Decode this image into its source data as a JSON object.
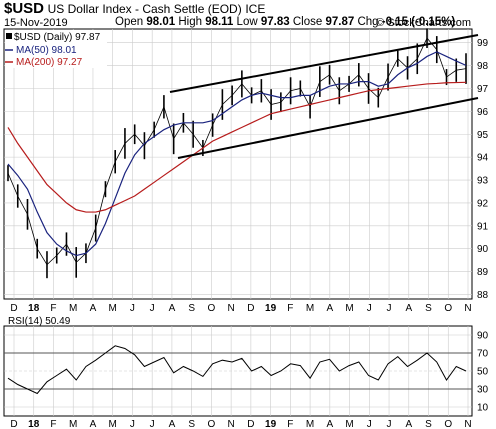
{
  "header": {
    "symbol": "$USD",
    "name": "US Dollar Index - Cash Settle (EOD)",
    "exchange": "ICE",
    "date": "15-Nov-2019",
    "open_label": "Open",
    "open": "98.01",
    "high_label": "High",
    "high": "98.11",
    "low_label": "Low",
    "low": "97.83",
    "close_label": "Close",
    "close": "97.87",
    "chg_label": "Chg",
    "chg": "-0.15 (-0.15%)",
    "watermark": "© StockCharts.com"
  },
  "legend": {
    "main": "$USD (Daily) 97.87",
    "ma50": "MA(50) 98.01",
    "ma200": "MA(200) 97.27",
    "rsi": "RSI(14) 50.49"
  },
  "colors": {
    "price": "#000000",
    "ma50": "#1a237e",
    "ma200": "#b71c1c",
    "rsi": "#000000",
    "grid": "#cccccc"
  },
  "chart_data": [
    {
      "type": "line",
      "title": "$USD (Daily)",
      "x_ticks": [
        "D",
        "18",
        "F",
        "M",
        "A",
        "M",
        "J",
        "J",
        "A",
        "S",
        "O",
        "N",
        "D",
        "19",
        "F",
        "M",
        "A",
        "M",
        "J",
        "J",
        "A",
        "S",
        "O",
        "N"
      ],
      "y_ticks": [
        88,
        89,
        90,
        91,
        92,
        93,
        94,
        95,
        96,
        97,
        98,
        99
      ],
      "ylim": [
        87.8,
        99.6
      ],
      "grid": true,
      "series": [
        {
          "name": "$USD (Daily)",
          "style": "bar-ohlc",
          "values": [
            93.3,
            92.3,
            91.5,
            90.0,
            89.3,
            89.7,
            90.2,
            89.4,
            89.8,
            90.9,
            92.6,
            93.8,
            94.6,
            95.0,
            94.5,
            95.2,
            96.2,
            94.8,
            95.5,
            95.0,
            94.4,
            95.4,
            96.3,
            96.7,
            97.2,
            96.7,
            96.9,
            96.3,
            96.4,
            96.9,
            97.0,
            96.2,
            97.3,
            97.6,
            96.9,
            97.2,
            97.6,
            97.0,
            96.6,
            97.5,
            98.3,
            97.9,
            98.3,
            99.2,
            98.7,
            97.5,
            97.8,
            97.87
          ]
        },
        {
          "name": "MA(50)",
          "values": [
            93.7,
            93.2,
            92.6,
            91.6,
            90.7,
            90.2,
            89.9,
            89.7,
            89.8,
            90.2,
            91.1,
            92.2,
            93.3,
            94.1,
            94.6,
            94.9,
            95.2,
            95.4,
            95.5,
            95.5,
            95.5,
            95.6,
            95.9,
            96.2,
            96.5,
            96.7,
            96.8,
            96.7,
            96.6,
            96.6,
            96.7,
            96.7,
            96.9,
            97.1,
            97.2,
            97.2,
            97.3,
            97.3,
            97.1,
            97.2,
            97.6,
            97.9,
            98.1,
            98.4,
            98.6,
            98.4,
            98.2,
            98.01
          ]
        },
        {
          "name": "MA(200)",
          "values": [
            95.3,
            94.6,
            94.0,
            93.4,
            92.8,
            92.4,
            92.0,
            91.7,
            91.6,
            91.6,
            91.7,
            91.9,
            92.1,
            92.3,
            92.6,
            92.9,
            93.2,
            93.5,
            93.8,
            94.1,
            94.4,
            94.7,
            94.9,
            95.1,
            95.3,
            95.5,
            95.7,
            95.9,
            96.0,
            96.1,
            96.2,
            96.3,
            96.4,
            96.5,
            96.6,
            96.7,
            96.8,
            96.9,
            96.95,
            97.0,
            97.05,
            97.1,
            97.15,
            97.2,
            97.22,
            97.25,
            97.26,
            97.27
          ]
        }
      ]
    },
    {
      "type": "line",
      "title": "RSI(14)",
      "x_ticks": [
        "D",
        "18",
        "F",
        "M",
        "A",
        "M",
        "J",
        "J",
        "A",
        "S",
        "O",
        "N",
        "D",
        "19",
        "F",
        "M",
        "A",
        "M",
        "J",
        "J",
        "A",
        "S",
        "O",
        "N"
      ],
      "y_ticks": [
        10,
        30,
        50,
        70,
        90
      ],
      "ylim": [
        0,
        100
      ],
      "series": [
        {
          "name": "RSI(14)",
          "values": [
            42,
            35,
            30,
            25,
            38,
            45,
            52,
            40,
            55,
            62,
            70,
            78,
            75,
            68,
            55,
            60,
            65,
            48,
            55,
            50,
            44,
            58,
            62,
            60,
            64,
            50,
            55,
            45,
            50,
            58,
            56,
            42,
            60,
            63,
            50,
            56,
            60,
            45,
            40,
            58,
            66,
            55,
            62,
            70,
            60,
            40,
            55,
            50
          ]
        }
      ]
    }
  ]
}
